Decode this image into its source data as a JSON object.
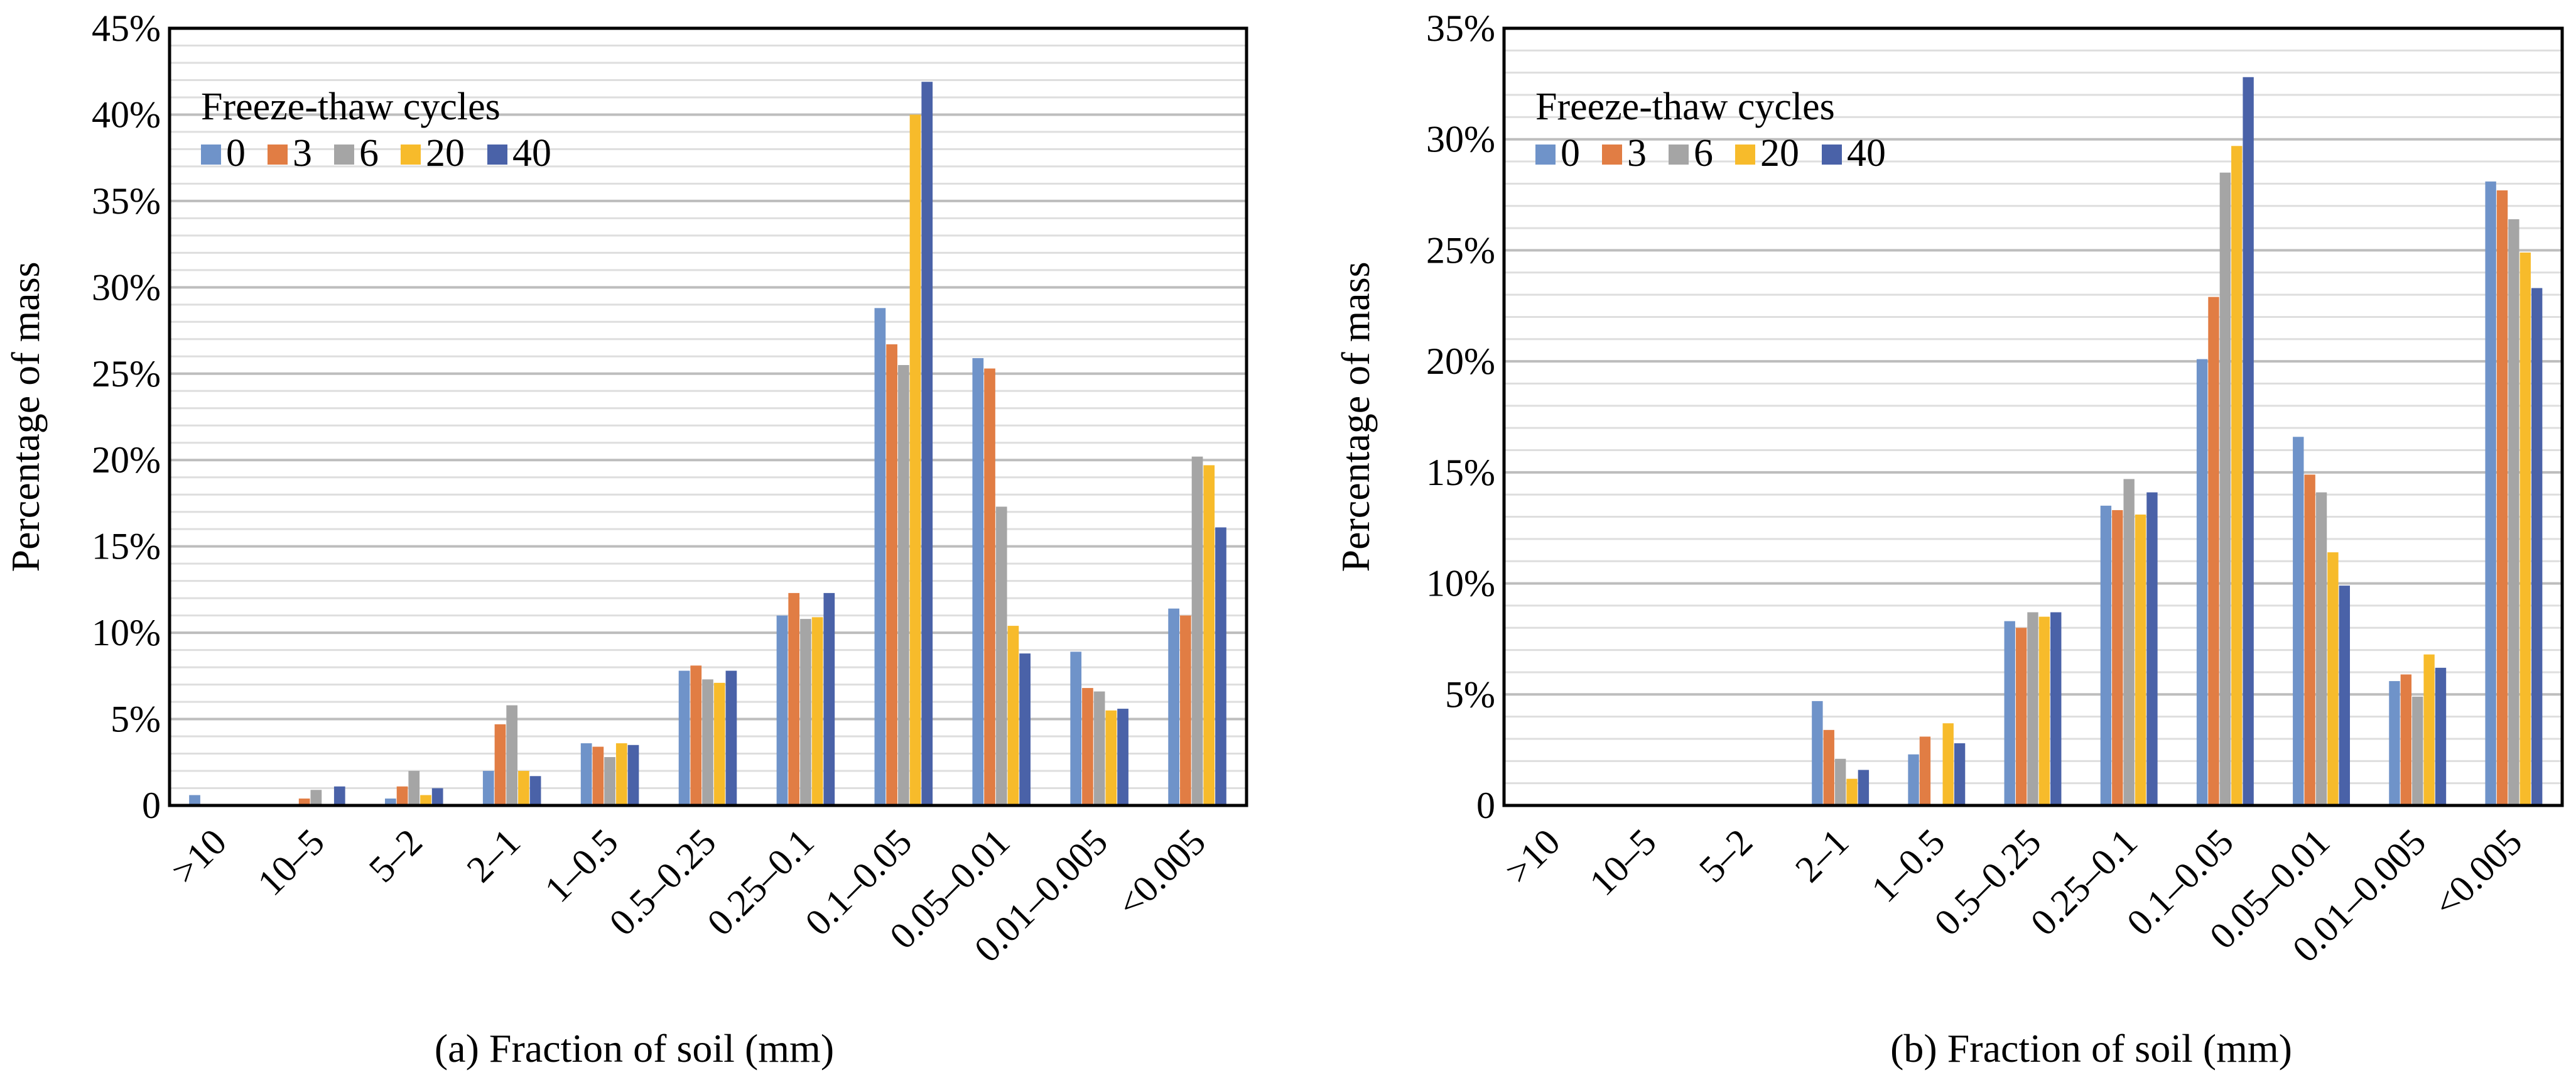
{
  "colors": {
    "0": "#6f93c9",
    "3": "#e17d44",
    "6": "#a5a5a5",
    "20": "#f7bb2b",
    "40": "#4a62a8"
  },
  "chart_data": [
    {
      "type": "bar",
      "caption": "(a) Fraction of soil (mm)",
      "ylabel": "Percentage of mass",
      "ylim": [
        0,
        45
      ],
      "yticks": [
        "0",
        "5%",
        "10%",
        "15%",
        "20%",
        "25%",
        "30%",
        "35%",
        "40%",
        "45%"
      ],
      "legend_title": "Freeze-thaw cycles",
      "legend_position": "top-left",
      "grid": true,
      "categories": [
        ">10",
        "10–5",
        "5–2",
        "2–1",
        "1–0.5",
        "0.5–0.25",
        "0.25–0.1",
        "0.1–0.05",
        "0.05–0.01",
        "0.01–0.005",
        "<0.005"
      ],
      "series": [
        {
          "name": "0",
          "values": [
            0.6,
            0,
            0.4,
            2.0,
            3.6,
            7.8,
            11.0,
            28.8,
            25.9,
            8.9,
            11.4
          ]
        },
        {
          "name": "3",
          "values": [
            0,
            0.4,
            1.1,
            4.7,
            3.4,
            8.1,
            12.3,
            26.7,
            25.3,
            6.8,
            11.0
          ]
        },
        {
          "name": "6",
          "values": [
            0,
            0.9,
            2.0,
            5.8,
            2.8,
            7.3,
            10.8,
            25.5,
            17.3,
            6.6,
            20.2
          ]
        },
        {
          "name": "20",
          "values": [
            0,
            0,
            0.6,
            2.0,
            3.6,
            7.1,
            10.9,
            40.0,
            10.4,
            5.5,
            19.7
          ]
        },
        {
          "name": "40",
          "values": [
            0,
            1.1,
            1.0,
            1.7,
            3.5,
            7.8,
            12.3,
            41.9,
            8.8,
            5.6,
            16.1
          ]
        }
      ]
    },
    {
      "type": "bar",
      "caption": "(b) Fraction of soil (mm)",
      "ylabel": "Percentage of mass",
      "ylim": [
        0,
        35
      ],
      "yticks": [
        "0",
        "5%",
        "10%",
        "15%",
        "20%",
        "25%",
        "30%",
        "35%"
      ],
      "legend_title": "Freeze-thaw cycles",
      "legend_position": "top-left",
      "grid": true,
      "categories": [
        ">10",
        "10–5",
        "5–2",
        "2–1",
        "1–0.5",
        "0.5–0.25",
        "0.25–0.1",
        "0.1–0.05",
        "0.05–0.01",
        "0.01–0.005",
        "<0.005"
      ],
      "series": [
        {
          "name": "0",
          "values": [
            0,
            0,
            0,
            4.7,
            2.3,
            8.3,
            13.5,
            20.1,
            16.6,
            5.6,
            28.1
          ]
        },
        {
          "name": "3",
          "values": [
            0,
            0,
            0,
            3.4,
            3.1,
            8.0,
            13.3,
            22.9,
            14.9,
            5.9,
            27.7
          ]
        },
        {
          "name": "6",
          "values": [
            0,
            0,
            0,
            2.1,
            0,
            8.7,
            14.7,
            28.5,
            14.1,
            4.9,
            26.4
          ]
        },
        {
          "name": "20",
          "values": [
            0,
            0,
            0,
            1.2,
            3.7,
            8.5,
            13.1,
            29.7,
            11.4,
            6.8,
            24.9
          ]
        },
        {
          "name": "40",
          "values": [
            0,
            0,
            0,
            1.6,
            2.8,
            8.7,
            14.1,
            32.8,
            9.9,
            6.2,
            23.3
          ]
        }
      ]
    }
  ]
}
